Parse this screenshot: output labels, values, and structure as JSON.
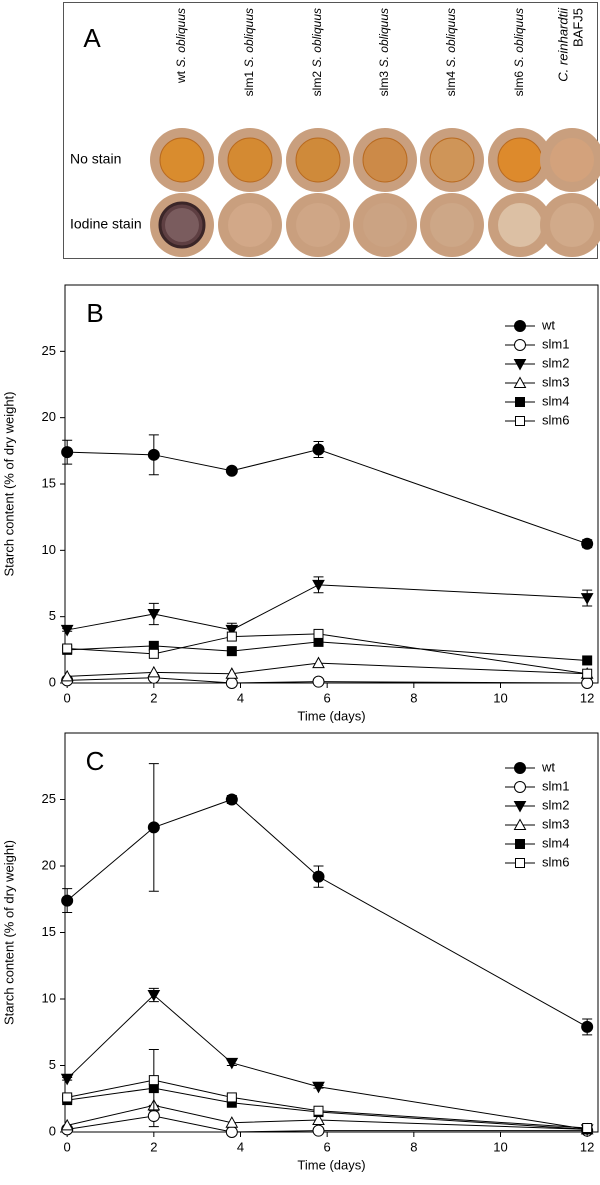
{
  "panel_a": {
    "label": "A",
    "columns": [
      {
        "strain": "wt",
        "species": "S. obliquus"
      },
      {
        "strain": "slm1",
        "species": "S. obliquus"
      },
      {
        "strain": "slm2",
        "species": "S. obliquus"
      },
      {
        "strain": "slm3",
        "species": "S. obliquus"
      },
      {
        "strain": "slm4",
        "species": "S. obliquus"
      },
      {
        "strain": "slm6",
        "species": "S. obliquus"
      },
      {
        "species": "C. reinhardtii",
        "strain": "BAFJ5"
      }
    ],
    "rows": [
      "No stain",
      "Iodine stain"
    ]
  },
  "chart_data": [
    {
      "type": "line",
      "label": "B",
      "x_label": "Time (days)",
      "y_label": "Starch content (% of dry weight)",
      "x": [
        0,
        2,
        3.8,
        5.8,
        12
      ],
      "xlim": [
        -0.05,
        12.25
      ],
      "ylim": [
        0,
        30
      ],
      "xticks": [
        0,
        2,
        4,
        6,
        8,
        10,
        12
      ],
      "yticks": [
        0,
        5,
        10,
        15,
        20,
        25
      ],
      "color": "#000000",
      "legend": "upper right",
      "series": [
        {
          "name": "wt",
          "marker": "circle",
          "filled": true,
          "values": [
            17.4,
            17.2,
            16.0,
            17.6,
            10.5
          ],
          "errors": [
            0.9,
            1.5,
            0.2,
            0.6,
            0.3
          ]
        },
        {
          "name": "slm1",
          "marker": "circle",
          "filled": false,
          "values": [
            0.2,
            0.4,
            0.0,
            0.1,
            0.0
          ]
        },
        {
          "name": "slm2",
          "marker": "triangle-down",
          "filled": true,
          "values": [
            4.0,
            5.2,
            4.0,
            7.4,
            6.4
          ],
          "errors": [
            0.1,
            0.8,
            0.5,
            0.6,
            0.6
          ]
        },
        {
          "name": "slm3",
          "marker": "triangle-up",
          "filled": false,
          "values": [
            0.5,
            0.8,
            0.7,
            1.5,
            0.7
          ]
        },
        {
          "name": "slm4",
          "marker": "square",
          "filled": true,
          "values": [
            2.5,
            2.8,
            2.4,
            3.1,
            1.7
          ]
        },
        {
          "name": "slm6",
          "marker": "square",
          "filled": false,
          "values": [
            2.6,
            2.2,
            3.5,
            3.7,
            0.7
          ]
        }
      ]
    },
    {
      "type": "line",
      "label": "C",
      "x_label": "Time (days)",
      "y_label": "Starch content (% of dry weight)",
      "x": [
        0,
        2,
        3.8,
        5.8,
        12
      ],
      "xlim": [
        -0.05,
        12.25
      ],
      "ylim": [
        0,
        30
      ],
      "xticks": [
        0,
        2,
        4,
        6,
        8,
        10,
        12
      ],
      "yticks": [
        0,
        5,
        10,
        15,
        20,
        25
      ],
      "color": "#000000",
      "legend": "upper right",
      "series": [
        {
          "name": "wt",
          "marker": "circle",
          "filled": true,
          "values": [
            17.4,
            22.9,
            25.0,
            19.2,
            7.9
          ],
          "errors": [
            0.9,
            4.8,
            0.3,
            0.8,
            0.6
          ]
        },
        {
          "name": "slm1",
          "marker": "circle",
          "filled": false,
          "values": [
            0.2,
            1.2,
            0.0,
            0.1,
            0.1
          ],
          "errors": [
            0.1,
            0.8,
            0.1,
            0.1,
            0.1
          ]
        },
        {
          "name": "slm2",
          "marker": "triangle-down",
          "filled": true,
          "values": [
            4.0,
            10.3,
            5.2,
            3.4,
            0.2
          ],
          "errors": [
            0.1,
            0.5,
            0.2,
            0.1,
            0.1
          ]
        },
        {
          "name": "slm3",
          "marker": "triangle-up",
          "filled": false,
          "values": [
            0.5,
            2.0,
            0.7,
            0.9,
            0.2
          ]
        },
        {
          "name": "slm4",
          "marker": "square",
          "filled": true,
          "values": [
            2.4,
            3.3,
            2.2,
            1.5,
            0.2
          ]
        },
        {
          "name": "slm6",
          "marker": "square",
          "filled": false,
          "values": [
            2.6,
            3.9,
            2.6,
            1.6,
            0.3
          ],
          "errors": [
            0.2,
            2.3,
            0.2,
            0.2,
            0.1
          ]
        }
      ]
    }
  ]
}
